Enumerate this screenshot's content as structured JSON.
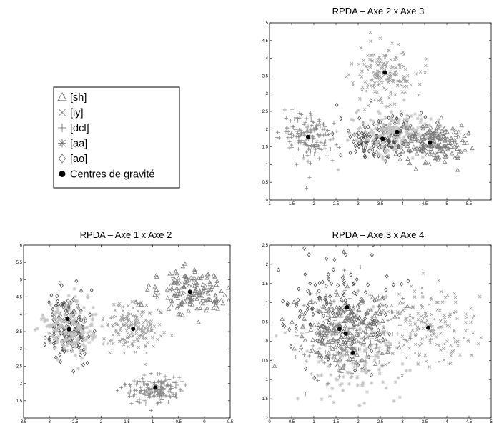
{
  "figure": {
    "legend": {
      "placement": "top-left",
      "items": [
        {
          "label": "[sh]",
          "marker": "triangle",
          "color": "#7a7a7a"
        },
        {
          "label": "[iy]",
          "marker": "x",
          "color": "#9a9a9a"
        },
        {
          "label": "[dcl]",
          "marker": "plus",
          "color": "#8a8a8a"
        },
        {
          "label": "[aa]",
          "marker": "asterisk",
          "color": "#c4c4c4"
        },
        {
          "label": "[ao]",
          "marker": "diamond",
          "color": "#4a4a4a"
        },
        {
          "label": "Centres de gravité",
          "marker": "dot",
          "color": "#000000"
        }
      ]
    }
  },
  "chart_data": [
    {
      "type": "scatter",
      "title": "RPDA – Axe 2 x Axe 3",
      "xlabel": "",
      "ylabel": "",
      "xlim": [
        1,
        6
      ],
      "ylim": [
        0,
        5
      ],
      "x_reversed": false,
      "y_reversed": false,
      "xticks": [
        1,
        1.5,
        2,
        2.5,
        3,
        3.5,
        4,
        4.5,
        5,
        5.5,
        6
      ],
      "xtick_labels": [
        "1",
        "1.5",
        "2",
        "2.5",
        "3",
        "3.5",
        "4",
        "4.5",
        "5",
        "5.5",
        ""
      ],
      "yticks": [
        0,
        0.5,
        1,
        1.5,
        2,
        2.5,
        3,
        3.5,
        4,
        4.5,
        5
      ],
      "ytick_labels": [
        "0",
        "0.5",
        "1",
        "1.5",
        "2",
        "2.5",
        "3",
        "3.5",
        "4",
        "4.5",
        "5"
      ],
      "grid": false,
      "series": [
        {
          "name": "[sh]",
          "marker": "triangle",
          "center": [
            4.7,
            1.6
          ],
          "spread": [
            0.35,
            0.28
          ]
        },
        {
          "name": "[iy]",
          "marker": "x",
          "center": [
            3.6,
            3.6
          ],
          "spread": [
            0.35,
            0.4
          ]
        },
        {
          "name": "[dcl]",
          "marker": "plus",
          "center": [
            1.9,
            1.75
          ],
          "spread": [
            0.3,
            0.35
          ]
        },
        {
          "name": "[aa]",
          "marker": "asterisk",
          "center": [
            3.9,
            1.9
          ],
          "spread": [
            0.5,
            0.3
          ]
        },
        {
          "name": "[ao]",
          "marker": "diamond",
          "center": [
            3.55,
            1.75
          ],
          "spread": [
            0.5,
            0.32
          ]
        }
      ],
      "centroids": [
        [
          1.87,
          1.78
        ],
        [
          3.6,
          3.6
        ],
        [
          3.55,
          1.73
        ],
        [
          3.88,
          1.92
        ],
        [
          4.62,
          1.62
        ]
      ]
    },
    {
      "type": "scatter",
      "title": "RPDA – Axe 1 x Axe 2",
      "xlabel": "",
      "ylabel": "",
      "xlim": [
        -0.5,
        3.5
      ],
      "ylim": [
        1,
        6
      ],
      "x_reversed": true,
      "y_reversed": false,
      "xticks": [
        3.5,
        3,
        2.5,
        2,
        1.5,
        1,
        0.5,
        0,
        -0.5
      ],
      "xtick_labels": [
        "3.5",
        "3",
        "2.5",
        "2",
        "1.5",
        "1",
        "0.5",
        "0",
        "0.5"
      ],
      "yticks": [
        1,
        1.5,
        2,
        2.5,
        3,
        3.5,
        4,
        4.5,
        5,
        5.5,
        6
      ],
      "ytick_labels": [
        "1",
        "1.5",
        "2",
        "2.5",
        "3",
        "3.5",
        "4",
        "4.5",
        "5",
        "5.5",
        "6"
      ],
      "grid": false,
      "series": [
        {
          "name": "[sh]",
          "marker": "triangle",
          "center": [
            0.3,
            4.65
          ],
          "spread": [
            0.35,
            0.3
          ]
        },
        {
          "name": "[iy]",
          "marker": "x",
          "center": [
            1.4,
            3.6
          ],
          "spread": [
            0.3,
            0.35
          ]
        },
        {
          "name": "[dcl]",
          "marker": "plus",
          "center": [
            0.95,
            1.85
          ],
          "spread": [
            0.25,
            0.2
          ]
        },
        {
          "name": "[aa]",
          "marker": "asterisk",
          "center": [
            2.6,
            3.6
          ],
          "spread": [
            0.25,
            0.4
          ]
        },
        {
          "name": "[ao]",
          "marker": "diamond",
          "center": [
            2.62,
            3.6
          ],
          "spread": [
            0.22,
            0.45
          ]
        }
      ],
      "centroids": [
        [
          2.65,
          3.87
        ],
        [
          2.62,
          3.57
        ],
        [
          1.38,
          3.58
        ],
        [
          0.28,
          4.65
        ],
        [
          0.95,
          1.88
        ]
      ]
    },
    {
      "type": "scatter",
      "title": "RPDA – Axe 3 x Axe 4",
      "xlabel": "",
      "ylabel": "",
      "xlim": [
        0,
        5
      ],
      "ylim": [
        -2,
        2.5
      ],
      "x_reversed": false,
      "y_reversed": false,
      "xticks": [
        0,
        0.5,
        1,
        1.5,
        2,
        2.5,
        3,
        3.5,
        4,
        4.5,
        5
      ],
      "xtick_labels": [
        "0",
        "0.5",
        "1",
        "1.5",
        "2",
        "2.5",
        "3",
        "3.5",
        "4",
        "4.5",
        "5"
      ],
      "yticks": [
        2.5,
        2,
        1.5,
        1,
        0.5,
        0,
        -0.5,
        -1,
        -1.5,
        -2
      ],
      "ytick_labels": [
        "2.5",
        "2",
        "1.5",
        "1",
        "0.5",
        "0",
        "0.5",
        "1",
        "1.5",
        "2"
      ],
      "grid": false,
      "series": [
        {
          "name": "[sh]",
          "marker": "triangle",
          "center": [
            1.6,
            0.3
          ],
          "spread": [
            0.5,
            0.5
          ]
        },
        {
          "name": "[iy]",
          "marker": "x",
          "center": [
            3.6,
            0.35
          ],
          "spread": [
            0.5,
            0.55
          ]
        },
        {
          "name": "[dcl]",
          "marker": "plus",
          "center": [
            1.7,
            0.2
          ],
          "spread": [
            0.6,
            0.6
          ]
        },
        {
          "name": "[aa]",
          "marker": "asterisk",
          "center": [
            1.9,
            -0.35
          ],
          "spread": [
            0.55,
            0.6
          ]
        },
        {
          "name": "[ao]",
          "marker": "diamond",
          "center": [
            1.6,
            0.75
          ],
          "spread": [
            0.6,
            0.7
          ]
        }
      ],
      "centroids": [
        [
          1.75,
          0.88
        ],
        [
          1.58,
          0.32
        ],
        [
          1.72,
          0.2
        ],
        [
          1.88,
          -0.3
        ],
        [
          3.58,
          0.35
        ]
      ]
    }
  ]
}
